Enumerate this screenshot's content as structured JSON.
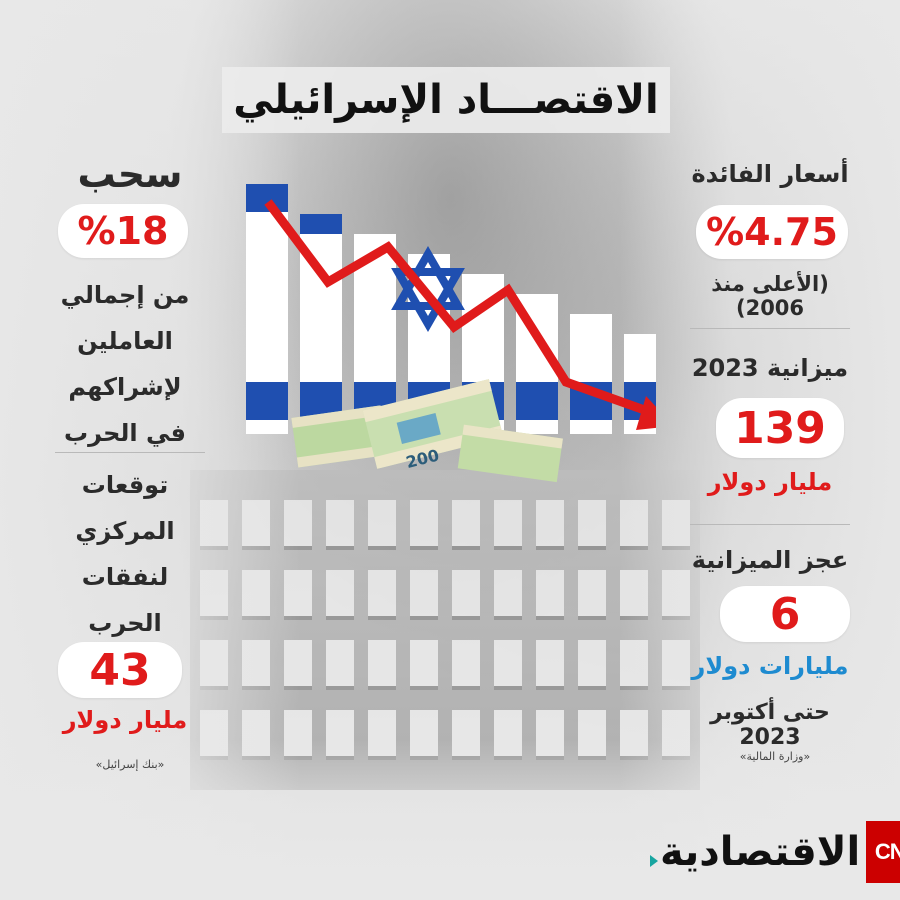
{
  "title": "الاقتصـــاد الإسرائيلي",
  "right": {
    "interest": {
      "label": "أسعار الفائدة",
      "value": "%4.75",
      "note": "(الأعلى منذ 2006)"
    },
    "budget": {
      "label": "ميزانية 2023",
      "value": "139",
      "unit": "مليار دولار"
    },
    "deficit": {
      "label": "عجز الميزانية",
      "value": "6",
      "unit": "مليارات دولار",
      "note": "حتى أكتوبر 2023",
      "source": "«وزارة المالية»"
    }
  },
  "left": {
    "withdrawal": {
      "label": "سحب",
      "value": "%18",
      "desc1": "من إجمالي",
      "desc2": "العاملين",
      "desc3": "لإشراكهم",
      "desc4": "في الحرب"
    },
    "expectation": {
      "line1": "توقعات",
      "line2": "المركزي",
      "line3": "لنفقات",
      "line4": "الحرب",
      "value": "43",
      "unit": "مليار دولار",
      "source": "«بنك إسرائيل»"
    }
  },
  "banknote_label": "200",
  "logo": {
    "cnn": "CNN",
    "word": "الاقتصادية"
  },
  "colors": {
    "red": "#e01b1b",
    "blue": "#1e8bd0",
    "flag_blue": "#1f4fb0",
    "cnn_red": "#cc0000"
  }
}
